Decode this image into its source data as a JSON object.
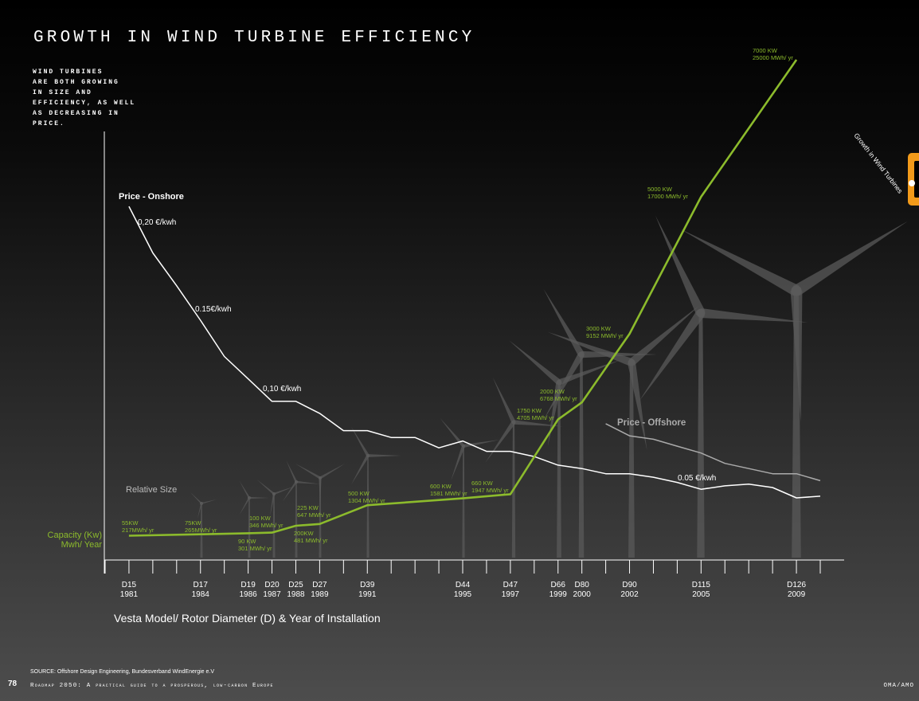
{
  "title": "GROWTH IN WIND TURBINE EFFICIENCY",
  "subtitle_lines": [
    "WIND TURBINES",
    "ARE BOTH GROWING",
    "IN SIZE AND",
    "EFFICIENCY, AS WELL",
    "AS DECREASING IN",
    "PRICE."
  ],
  "side_tab": "Growth in Wind Turbines",
  "source": "SOURCE: Offshore Design Engineering, Bundesverband WindEnergie e.V",
  "footer": {
    "page": 78,
    "publication": "Roadmap 2050: A practical guide to a prosperous, low-carbon Europe",
    "credit": "OMA/AMO"
  },
  "chart_data": {
    "type": "line",
    "x_label": "Vesta Model/ Rotor Diameter (D) & Year of Installation",
    "relative_size_label": "Relative Size",
    "xlim": [
      1980,
      2010
    ],
    "xticks": [
      {
        "value": 1980,
        "label": null
      },
      1981,
      {
        "value": 1982,
        "label": null
      },
      {
        "value": 1983,
        "label": null
      },
      1984,
      {
        "value": 1985,
        "label": null
      },
      1986,
      1987,
      1988,
      1989,
      {
        "value": 1990,
        "label": null
      },
      1991,
      {
        "value": 1992,
        "label": null
      },
      {
        "value": 1993,
        "label": null
      },
      {
        "value": 1994,
        "label": null
      },
      1995,
      {
        "value": 1996,
        "label": null
      },
      1997,
      {
        "value": 1998,
        "label": null
      },
      1999,
      2000,
      {
        "value": 2001,
        "label": null
      },
      2002,
      {
        "value": 2003,
        "label": null
      },
      {
        "value": 2004,
        "label": null
      },
      2005,
      {
        "value": 2006,
        "label": null
      },
      {
        "value": 2007,
        "label": null
      },
      {
        "value": 2008,
        "label": null
      },
      2009,
      {
        "value": 2010,
        "label": null
      }
    ],
    "models": [
      null,
      "D15",
      null,
      null,
      "D17",
      null,
      "D19",
      "D20",
      "D25",
      "D27",
      null,
      "D39",
      null,
      null,
      null,
      "D44",
      null,
      "D47",
      null,
      "D66",
      "D80",
      null,
      "D90",
      null,
      null,
      "D115",
      null,
      null,
      null,
      "D126",
      null
    ],
    "ylim": [
      0,
      0.29
    ],
    "y2lim": [
      -300,
      7000
    ],
    "annotations": [
      "0,20 €/kwh",
      "0.15€/kwh",
      "0,10 €/kwh",
      "0.05 €/kwh"
    ],
    "series": [
      {
        "name": "Price - Onshore",
        "color": "#ffffff",
        "x": [
          1981,
          1982,
          1983,
          1984,
          1985,
          1986,
          1987,
          1988,
          1989,
          1990,
          1991,
          1992,
          1993,
          1994,
          1995,
          1996,
          1997,
          1998,
          1999,
          2000,
          2001,
          2002,
          2003,
          2004,
          2005,
          2006,
          2007,
          2008,
          2009,
          2010
        ],
        "values": [
          0.205,
          0.178,
          0.159,
          0.139,
          0.118,
          0.105,
          0.092,
          0.092,
          0.085,
          0.075,
          0.075,
          0.071,
          0.071,
          0.065,
          0.069,
          0.063,
          0.063,
          0.06,
          0.055,
          0.053,
          0.05,
          0.05,
          0.048,
          0.045,
          0.041,
          0.043,
          0.044,
          0.042,
          0.036,
          0.037
        ]
      },
      {
        "name": "Price - Offshore",
        "color": "#aaaaaa",
        "x": [
          2001,
          2002,
          2003,
          2004,
          2005,
          2006,
          2007,
          2008,
          2009,
          2010
        ],
        "values": [
          0.079,
          0.072,
          0.07,
          0.066,
          0.062,
          0.056,
          0.053,
          0.05,
          0.05,
          0.046
        ]
      },
      {
        "name": "Capacity (Kw)\nMwh/ Year",
        "color": "#8cbb2c",
        "axis": "y2",
        "x": [
          1981,
          1984,
          1986,
          1987,
          1988,
          1989,
          1991,
          1995,
          1997,
          1999,
          2000,
          2002,
          2005,
          2009
        ],
        "values": [
          55,
          75,
          90,
          100,
          200,
          225,
          500,
          600,
          660,
          1750,
          2000,
          3000,
          5000,
          7000
        ],
        "value_labels": [
          "55KW",
          "75KW",
          "90 KW",
          "100 KW",
          "200KW",
          "225 KW",
          "500 KW",
          "600 KW",
          "660 KW",
          "1750 KW",
          "2000 KW",
          "3000 KW",
          "5000 KW",
          "7000 KW"
        ],
        "energy_labels": [
          "217MWh/ yr",
          "265MWh/ yr",
          "301 MWh/ yr",
          "346 MWh/ yr",
          "481 MWh/ yr",
          "647 MWh/ yr",
          "1304 MWh/ yr",
          "1581 MWh/ yr",
          "1947 MWh/ yr",
          "4705 MWh/ yr",
          "6768 MWh/ yr",
          "9152 MWh/ yr",
          "17000 MWh/ yr",
          "25000 MWh/ yr"
        ]
      }
    ]
  }
}
